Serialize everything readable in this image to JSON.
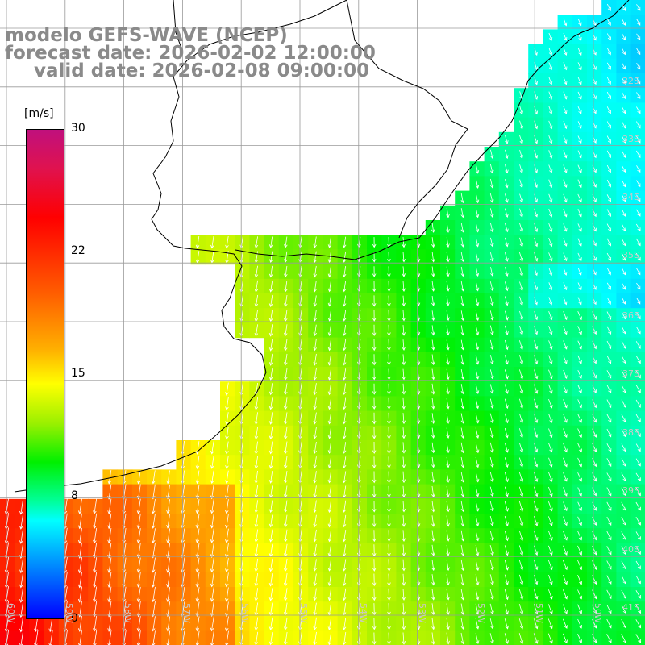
{
  "title": {
    "line1": "modelo GEFS-WAVE (NCEP)",
    "line2": "forecast date: 2026-02-02 12:00:00",
    "line3": "valid date: 2026-02-08 09:00:00"
  },
  "colorbar": {
    "unit": "[m/s]",
    "ticks": [
      "30",
      "22",
      "15",
      "8",
      "0"
    ],
    "tick_values": [
      30,
      22,
      15,
      8,
      0
    ],
    "colors": [
      "#0000ff",
      "#0099ff",
      "#00ffff",
      "#00ff99",
      "#00f000",
      "#9cf000",
      "#ffff00",
      "#ffb000",
      "#ff5a00",
      "#ff0000",
      "#c0107d"
    ]
  },
  "lat_labels": [
    "32S",
    "33S",
    "34S",
    "35S",
    "36S",
    "37S",
    "38S",
    "39S",
    "40S",
    "41S"
  ],
  "lon_labels": [
    "60W",
    "59W",
    "58W",
    "57W",
    "56W",
    "55W",
    "54W",
    "53W",
    "52W",
    "51W",
    "50W"
  ],
  "colors": {
    "land": "#ffffff",
    "coast": "#000000",
    "grid": "#9a9a9a",
    "arrow": "#ffffff",
    "title": "#8a8a8a"
  }
}
